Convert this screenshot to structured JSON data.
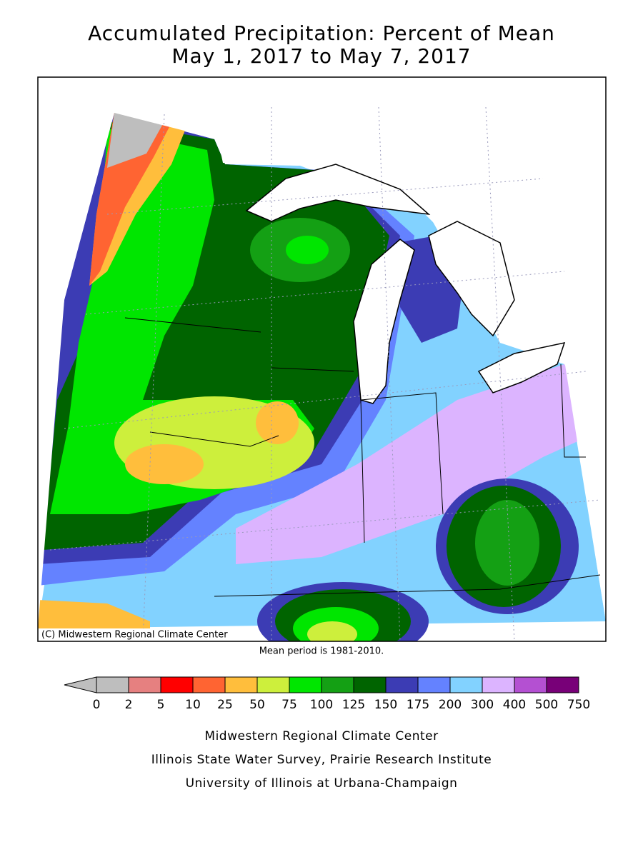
{
  "title": [
    "Accumulated Precipitation: Percent of Mean",
    "May 1, 2017 to May 7, 2017"
  ],
  "copyright": "(C) Midwestern Regional Climate Center",
  "note": "Mean period is 1981-2010.",
  "legend": {
    "extend_color": "#bebebe",
    "colors": [
      "#bebebe",
      "#e68080",
      "#ff0000",
      "#ff6432",
      "#ffbe3c",
      "#cdef3c",
      "#00e600",
      "#14a014",
      "#006400",
      "#3c3cb4",
      "#6482ff",
      "#82d2ff",
      "#dcb4ff",
      "#b450d2",
      "#780078"
    ],
    "ticks": [
      0,
      2,
      5,
      10,
      25,
      50,
      75,
      100,
      125,
      150,
      175,
      200,
      300,
      400,
      500,
      750
    ]
  },
  "footer": [
    "Midwestern Regional Climate Center",
    "Illinois State Water Survey, Prairie Research Institute",
    "University of Illinois at Urbana-Champaign"
  ]
}
